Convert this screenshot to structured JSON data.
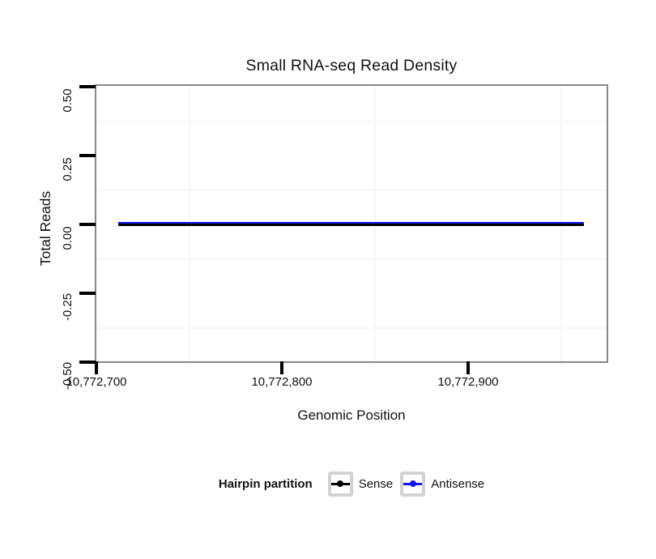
{
  "title": "Small RNA-seq Read Density",
  "axes": {
    "x": {
      "label": "Genomic Position",
      "tick_labels": [
        "10,772,700",
        "10,772,800",
        "10,772,900"
      ]
    },
    "y": {
      "label": "Total Reads",
      "tick_labels": [
        "0.50",
        "0.25",
        "0.00",
        "-0.25",
        "-0.50"
      ]
    }
  },
  "legend": {
    "title": "Hairpin partition",
    "items": [
      {
        "label": "Sense",
        "color": "#000000"
      },
      {
        "label": "Antisense",
        "color": "#1414ef"
      }
    ]
  },
  "colors": {
    "background": "#ffffff",
    "plot_border": "#878787",
    "tick": "#000000",
    "grid_minor": "#f6f6f6",
    "legend_key_border": "#d2d2d2",
    "text": "#111111"
  },
  "chart_data": {
    "type": "line",
    "title": "Small RNA-seq Read Density",
    "xlabel": "Genomic Position",
    "ylabel": "Total Reads",
    "xlim": [
      10772699.5,
      10772974.5
    ],
    "ylim": [
      -0.5,
      0.5
    ],
    "x_ticks": [
      10772700,
      10772800,
      10772900
    ],
    "y_ticks": [
      0.5,
      0.25,
      0,
      -0.25,
      -0.5
    ],
    "x_minor_grid": [
      10772750,
      10772850,
      10772950
    ],
    "y_minor_grid": [
      0.375,
      0.125,
      -0.125,
      -0.375
    ],
    "grid": "minor gridlines only, very light gray; no major gridlines",
    "legend_position": "bottom-center",
    "series": [
      {
        "name": "Sense",
        "color": "#000000",
        "x": [
          10772712,
          10772962
        ],
        "y": [
          0,
          0
        ]
      },
      {
        "name": "Antisense",
        "color": "#1414ef",
        "x": [
          10772712,
          10772962
        ],
        "y": [
          0,
          0
        ]
      }
    ]
  }
}
